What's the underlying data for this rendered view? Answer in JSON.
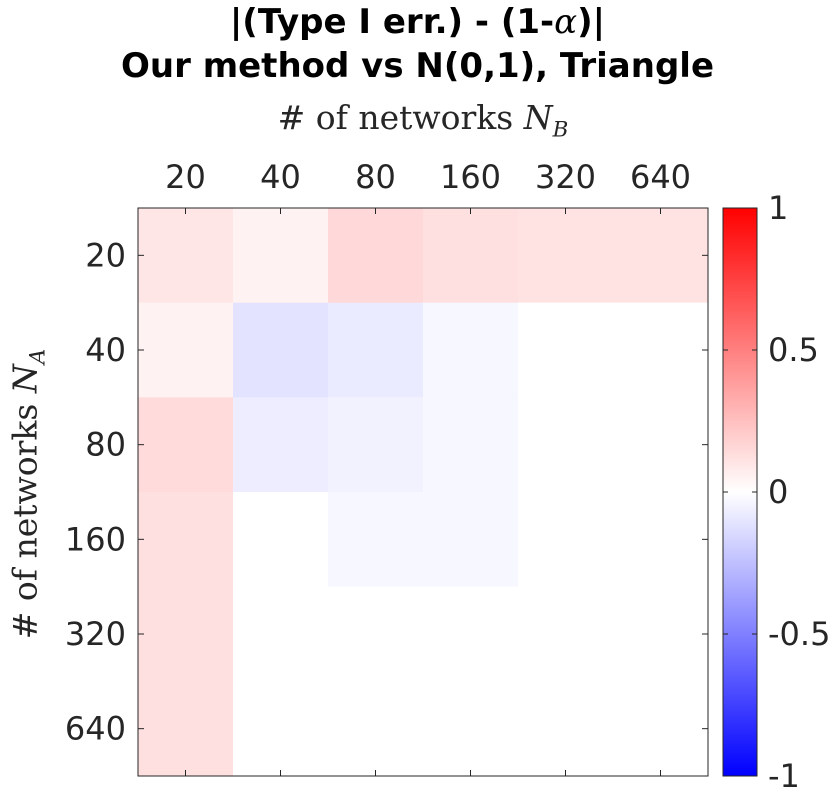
{
  "title": {
    "line1_prefix": "|(Type I err.) - (1-",
    "line1_symbol": "α",
    "line1_suffix": ")|",
    "line2": "Our method vs N(0,1), Triangle"
  },
  "chart_data": {
    "type": "heatmap",
    "xlabel_text": "# of networks ",
    "xlabel_var": "N",
    "xlabel_sub": "B",
    "ylabel_text": "# of networks ",
    "ylabel_var": "N",
    "ylabel_sub": "A",
    "x_categories": [
      "20",
      "40",
      "80",
      "160",
      "320",
      "640"
    ],
    "y_categories": [
      "20",
      "40",
      "80",
      "160",
      "320",
      "640"
    ],
    "values": [
      [
        0.1,
        0.05,
        0.15,
        0.12,
        0.11,
        0.11
      ],
      [
        0.05,
        -0.11,
        -0.08,
        -0.03,
        0.0,
        0.0
      ],
      [
        0.14,
        -0.07,
        -0.05,
        -0.03,
        0.0,
        0.0
      ],
      [
        0.12,
        0.0,
        -0.03,
        -0.03,
        0.0,
        0.0
      ],
      [
        0.12,
        0.0,
        0.0,
        0.0,
        0.0,
        0.0
      ],
      [
        0.12,
        0.0,
        0.0,
        0.0,
        0.0,
        0.0
      ]
    ],
    "colorbar": {
      "min": -1,
      "max": 1,
      "ticks": [
        1,
        0.5,
        0,
        -0.5,
        -1
      ],
      "tick_labels": [
        "1",
        "0.5",
        "0",
        "-0.5",
        "-1"
      ],
      "colormap": "blue-white-red",
      "min_color": "#0000ff",
      "mid_color": "#ffffff",
      "max_color": "#ff0000"
    },
    "x_axis_position": "top"
  }
}
